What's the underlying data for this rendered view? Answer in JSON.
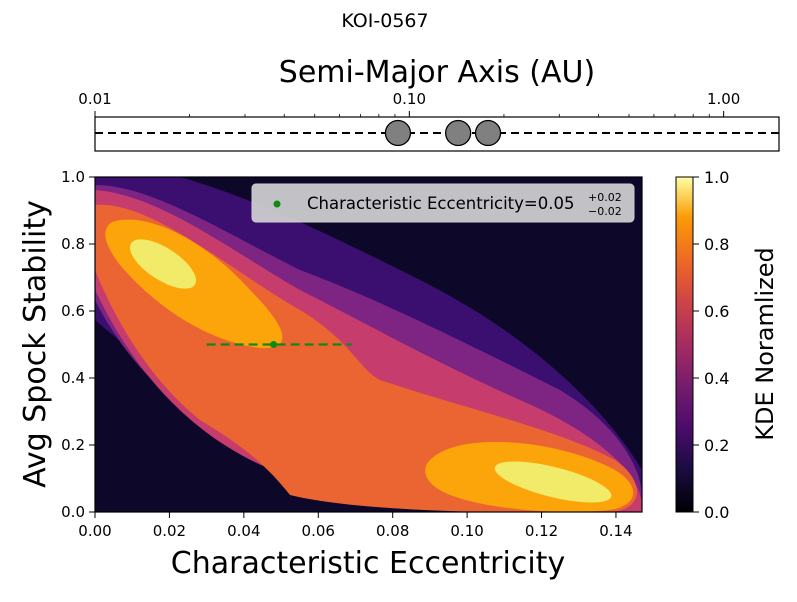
{
  "colors": {
    "background": "#0d0829",
    "level1": "#3b0f6f",
    "level2": "#7e2482",
    "level3": "#c53c6d",
    "level4": "#eb6533",
    "level5": "#fca50a",
    "level6": "#f2ea69",
    "marker": "#0f8a0f",
    "planet_fill": "#808080"
  },
  "chart_data": [
    {
      "id": "semimajor-axis-strip",
      "type": "scatter",
      "title": "KOI-0567",
      "xlabel": "Semi-Major Axis (AU)",
      "xscale": "log",
      "xlim": [
        0.01,
        1.5
      ],
      "xticks": [
        {
          "value": 0.01,
          "label": "0.01"
        },
        {
          "value": 0.1,
          "label": "0.10"
        },
        {
          "value": 1.0,
          "label": "1.00"
        }
      ],
      "planets_au": [
        0.092,
        0.143,
        0.178
      ]
    },
    {
      "id": "kde-contour",
      "type": "heatmap",
      "xlabel": "Characteristic Eccentricity",
      "ylabel": "Avg Spock Stability",
      "xlim": [
        0.0,
        0.147
      ],
      "ylim": [
        0.0,
        1.0
      ],
      "xticks": [
        "0.00",
        "0.02",
        "0.04",
        "0.06",
        "0.08",
        "0.10",
        "0.12",
        "0.14"
      ],
      "yticks": [
        "0.0",
        "0.2",
        "0.4",
        "0.6",
        "0.8",
        "1.0"
      ],
      "point": {
        "x": 0.048,
        "y": 0.5,
        "xerr_low": 0.018,
        "xerr_high": 0.021
      },
      "legend": {
        "label_prefix": "Characteristic Eccentricity=0.05",
        "upper": "+0.02",
        "lower": "−0.02",
        "placement": "top-right"
      },
      "colorbar": {
        "label": "KDE Noramlized",
        "ticks": [
          "0.0",
          "0.2",
          "0.4",
          "0.6",
          "0.8",
          "1.0"
        ]
      }
    }
  ]
}
